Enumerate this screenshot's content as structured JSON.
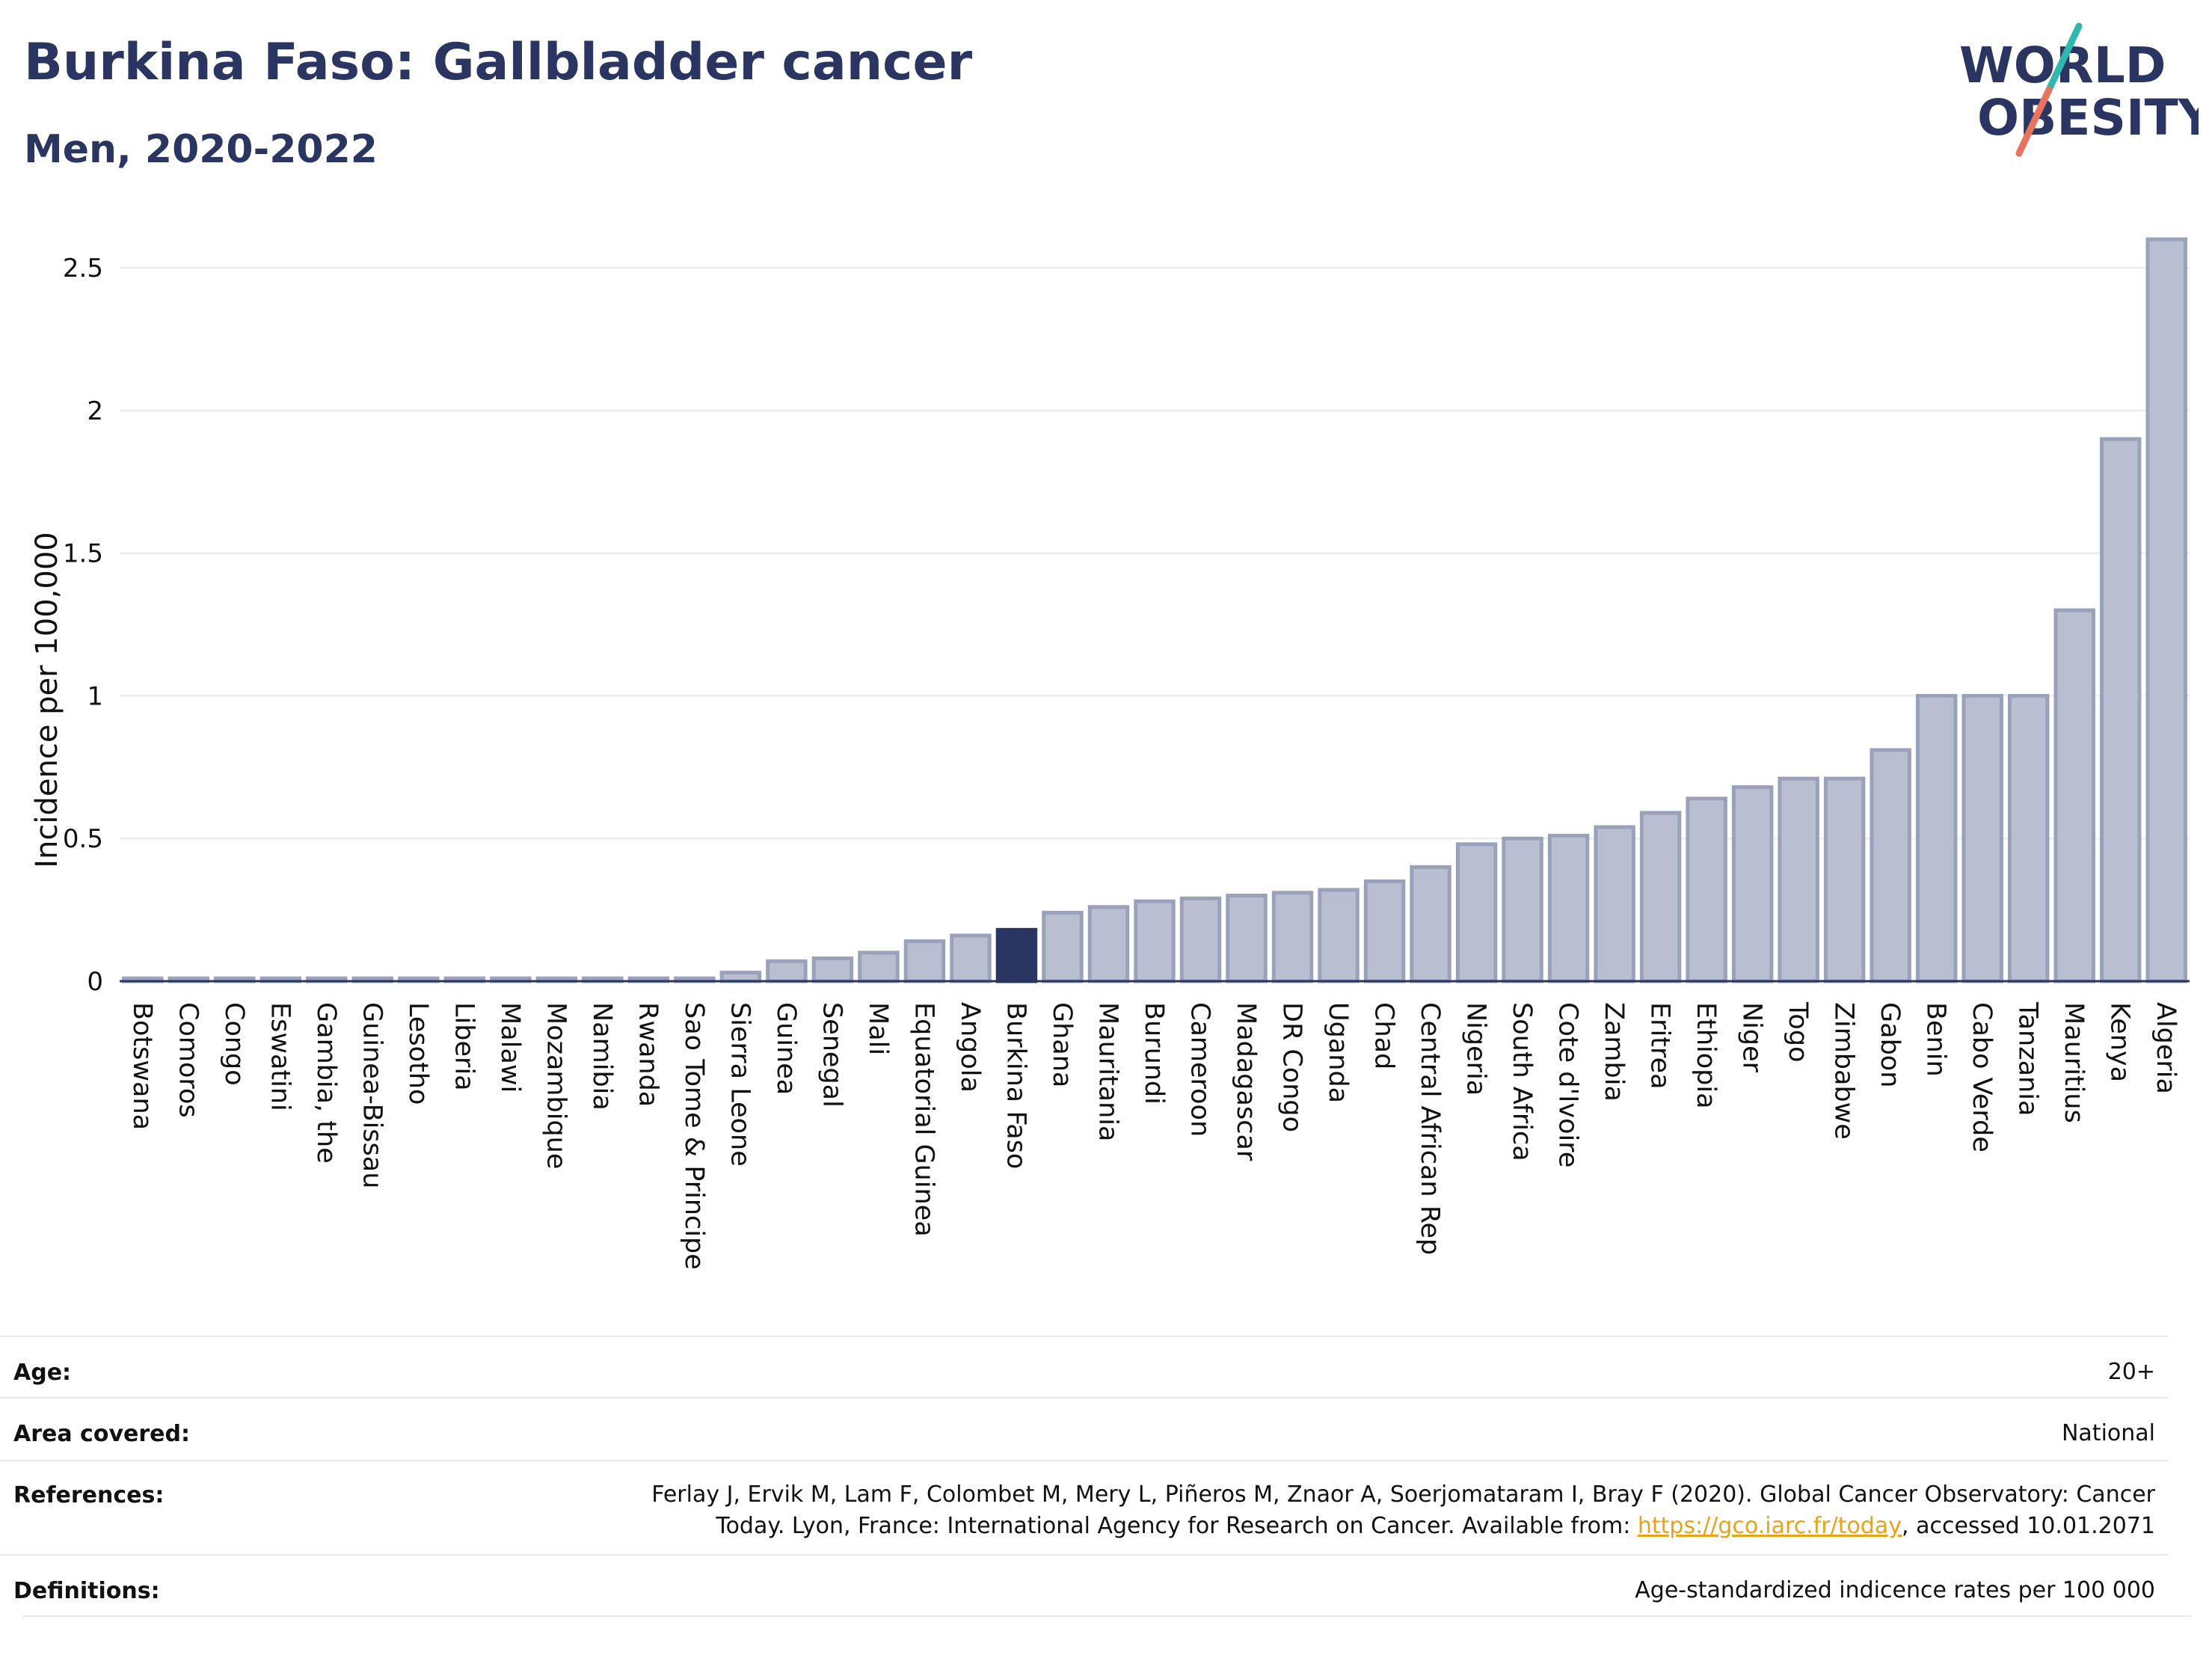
{
  "header": {
    "title": "Burkina Faso: Gallbladder cancer",
    "subtitle": "Men, 2020-2022"
  },
  "logo": {
    "line1": "WORLD",
    "line2": "OBESITY",
    "accent_teal": "#2fb8b0",
    "accent_coral": "#e8735f"
  },
  "colors": {
    "bar": "#b9bfd0",
    "bar_stroke": "#9aa1bb",
    "highlight": "#2a3561",
    "grid": "#e6e9ef",
    "axis": "#2a3561"
  },
  "chart_data": {
    "type": "bar",
    "ylabel": "Incidence per 100,000",
    "ylim": [
      0,
      2.6
    ],
    "yticks": [
      0,
      0.5,
      1,
      1.5,
      2,
      2.5
    ],
    "ytick_labels": [
      "0",
      "0.5",
      "1",
      "1.5",
      "2",
      "2.5"
    ],
    "highlight": "Burkina Faso",
    "categories": [
      "Botswana",
      "Comoros",
      "Congo",
      "Eswatini",
      "Gambia, the",
      "Guinea-Bissau",
      "Lesotho",
      "Liberia",
      "Malawi",
      "Mozambique",
      "Namibia",
      "Rwanda",
      "Sao Tome & Principe",
      "Sierra Leone",
      "Guinea",
      "Senegal",
      "Mali",
      "Equatorial Guinea",
      "Angola",
      "Burkina Faso",
      "Ghana",
      "Mauritania",
      "Burundi",
      "Cameroon",
      "Madagascar",
      "DR Congo",
      "Uganda",
      "Chad",
      "Central African Rep",
      "Nigeria",
      "South Africa",
      "Cote d'Ivoire",
      "Zambia",
      "Eritrea",
      "Ethiopia",
      "Niger",
      "Togo",
      "Zimbabwe",
      "Gabon",
      "Benin",
      "Cabo Verde",
      "Tanzania",
      "Mauritius",
      "Kenya",
      "Algeria"
    ],
    "values": [
      0.01,
      0.01,
      0.01,
      0.01,
      0.01,
      0.01,
      0.01,
      0.01,
      0.01,
      0.01,
      0.01,
      0.01,
      0.01,
      0.03,
      0.07,
      0.08,
      0.1,
      0.14,
      0.16,
      0.18,
      0.24,
      0.26,
      0.28,
      0.29,
      0.3,
      0.31,
      0.32,
      0.35,
      0.4,
      0.48,
      0.5,
      0.51,
      0.54,
      0.59,
      0.64,
      0.68,
      0.71,
      0.71,
      0.81,
      1.0,
      1.0,
      1.0,
      1.3,
      1.9,
      2.6
    ]
  },
  "info": {
    "age_label": "Age:",
    "age_value": "20+",
    "area_label": "Area covered:",
    "area_value": "National",
    "references_label": "References:",
    "references_line1": "Ferlay J, Ervik M, Lam F, Colombet M, Mery L, Piñeros M, Znaor A, Soerjomataram I, Bray F (2020). Global Cancer Observatory: Cancer",
    "references_line2_pre": "Today. Lyon, France: International Agency for Research on Cancer. Available from: ",
    "references_link": "https://gco.iarc.fr/today",
    "references_line2_post": ", accessed 10.01.2071",
    "definitions_label": "Definitions:",
    "definitions_value": "Age-standardized indicence rates per 100 000"
  }
}
